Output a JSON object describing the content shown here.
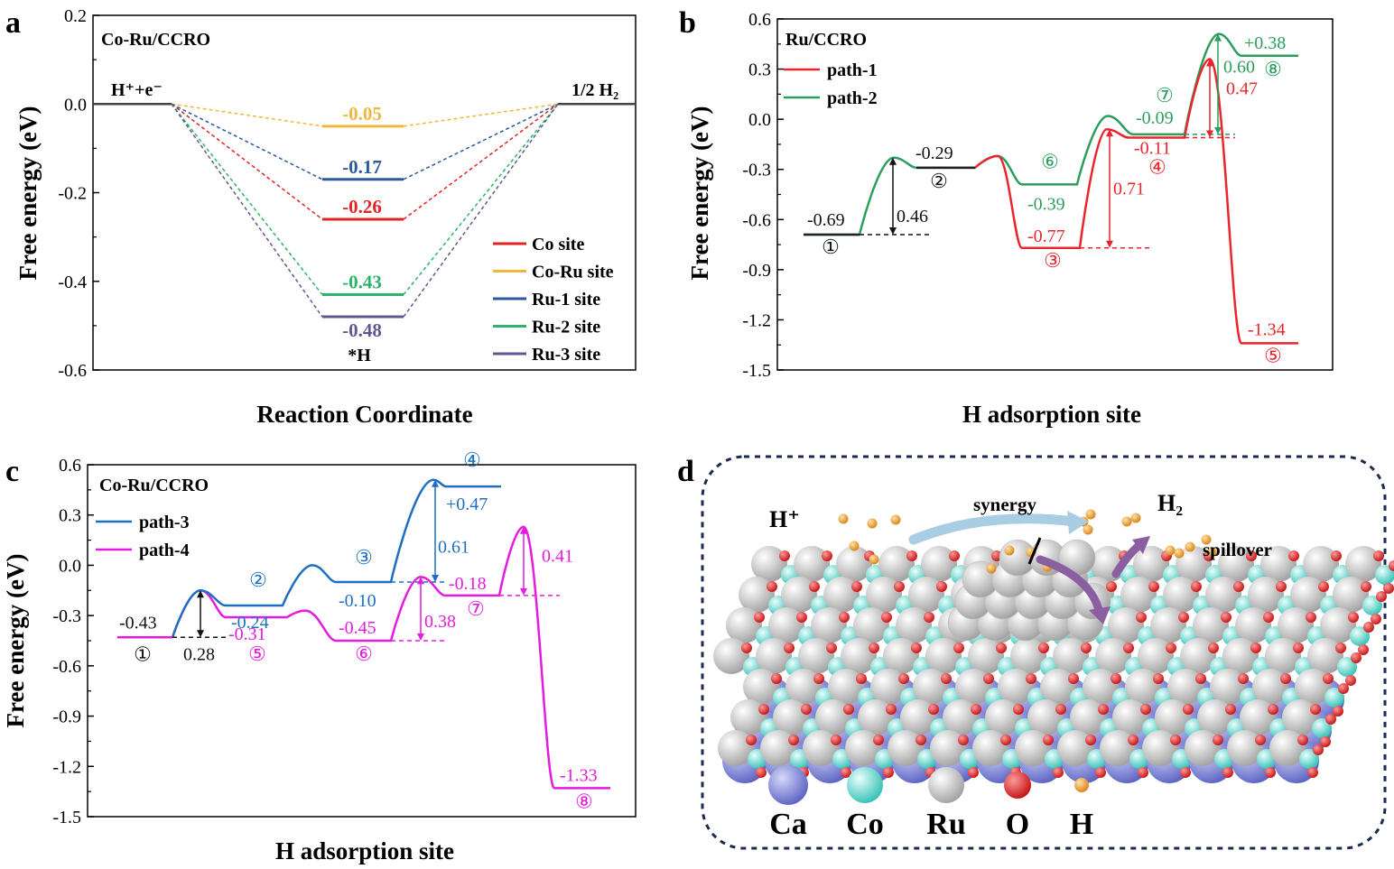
{
  "colors": {
    "co": "#e02424",
    "coru": "#f0b73c",
    "ru1": "#2d5a9c",
    "ru2": "#2eb36a",
    "ru3": "#5e5a91",
    "path1": "#e8262b",
    "path2": "#2c9e5c",
    "path3": "#1f6fc1",
    "path4": "#e61be0",
    "black": "#111111",
    "frame_dash": "#1b2b50"
  },
  "chart_data": [
    {
      "panel": "a",
      "type": "line",
      "title": "Co-Ru/CCRO",
      "xlabel": "Reaction Coordinate",
      "ylabel": "Free energy (eV)",
      "ylim": [
        -0.6,
        0.2
      ],
      "yticks": [
        "0.2",
        "0.0",
        "-0.2",
        "-0.4",
        "-0.6"
      ],
      "state_labels": {
        "initial": "H⁺+e⁻",
        "adsorbed": "*H",
        "final": "1/2 H₂"
      },
      "series": [
        {
          "name": "Co site",
          "color_key": "co",
          "value": -0.26,
          "value_label": "-0.26"
        },
        {
          "name": "Co-Ru site",
          "color_key": "coru",
          "value": -0.05,
          "value_label": "-0.05"
        },
        {
          "name": "Ru-1 site",
          "color_key": "ru1",
          "value": -0.17,
          "value_label": "-0.17"
        },
        {
          "name": "Ru-2 site",
          "color_key": "ru2",
          "value": -0.43,
          "value_label": "-0.43"
        },
        {
          "name": "Ru-3 site",
          "color_key": "ru3",
          "value": -0.48,
          "value_label": "-0.48"
        }
      ],
      "legend_position": "bottom-right"
    },
    {
      "panel": "b",
      "type": "line",
      "title": "Ru/CCRO",
      "xlabel": "H adsorption site",
      "ylabel": "Free energy (eV)",
      "ylim": [
        -1.5,
        0.6
      ],
      "yticks": [
        "0.6",
        "0.3",
        "0.0",
        "-0.3",
        "-0.6",
        "-0.9",
        "-1.2",
        "-1.5"
      ],
      "series": [
        {
          "name": "path-1",
          "color_key": "path1"
        },
        {
          "name": "path-2",
          "color_key": "path2"
        }
      ],
      "levels": [
        {
          "site": "①",
          "value": -0.69,
          "label": "-0.69",
          "color_key": "black"
        },
        {
          "site": "②",
          "value": -0.29,
          "label": "-0.29",
          "color_key": "black"
        },
        {
          "site": "③",
          "value": -0.77,
          "label": "-0.77",
          "color_key": "path1"
        },
        {
          "site": "④",
          "value": -0.11,
          "label": "-0.11",
          "color_key": "path1"
        },
        {
          "site": "⑤",
          "value": -1.34,
          "label": "-1.34",
          "color_key": "path1"
        },
        {
          "site": "⑥",
          "value": -0.39,
          "label": "-0.39",
          "color_key": "path2"
        },
        {
          "site": "⑦",
          "value": -0.09,
          "label": "-0.09",
          "color_key": "path2"
        },
        {
          "site": "⑧",
          "value": 0.38,
          "label": "+0.38",
          "color_key": "path2"
        }
      ],
      "barriers": [
        {
          "value": 0.46,
          "label": "0.46",
          "color_key": "black"
        },
        {
          "value": 0.71,
          "label": "0.71",
          "color_key": "path1"
        },
        {
          "value": 0.47,
          "label": "0.47",
          "color_key": "path1"
        },
        {
          "value": 0.6,
          "label": "0.60",
          "color_key": "path2"
        }
      ],
      "legend_position": "top-left"
    },
    {
      "panel": "c",
      "type": "line",
      "title": "Co-Ru/CCRO",
      "xlabel": "H adsorption site",
      "ylabel": "Free energy (eV)",
      "ylim": [
        -1.5,
        0.6
      ],
      "yticks": [
        "0.6",
        "0.3",
        "0.0",
        "-0.3",
        "-0.6",
        "-0.9",
        "-1.2",
        "-1.5"
      ],
      "series": [
        {
          "name": "path-3",
          "color_key": "path3"
        },
        {
          "name": "path-4",
          "color_key": "path4"
        }
      ],
      "levels": [
        {
          "site": "①",
          "value": -0.43,
          "label": "-0.43",
          "color_key": "black"
        },
        {
          "site": "②",
          "value": -0.24,
          "label": "-0.24",
          "color_key": "path3"
        },
        {
          "site": "③",
          "value": -0.1,
          "label": "-0.10",
          "color_key": "path3"
        },
        {
          "site": "④",
          "value": 0.47,
          "label": "+0.47",
          "color_key": "path3"
        },
        {
          "site": "⑤",
          "value": -0.31,
          "label": "-0.31",
          "color_key": "path4"
        },
        {
          "site": "⑥",
          "value": -0.45,
          "label": "-0.45",
          "color_key": "path4"
        },
        {
          "site": "⑦",
          "value": -0.18,
          "label": "-0.18",
          "color_key": "path4"
        },
        {
          "site": "⑧",
          "value": -1.33,
          "label": "-1.33",
          "color_key": "path4"
        }
      ],
      "barriers": [
        {
          "value": 0.28,
          "label": "0.28",
          "color_key": "black"
        },
        {
          "value": 0.61,
          "label": "0.61",
          "color_key": "path3"
        },
        {
          "value": 0.38,
          "label": "0.38",
          "color_key": "path4"
        },
        {
          "value": 0.41,
          "label": "0.41",
          "color_key": "path4"
        }
      ],
      "legend_position": "top-left"
    }
  ],
  "panels": {
    "a": "a",
    "b": "b",
    "c": "c",
    "d": "d"
  },
  "schematic": {
    "labels": {
      "proton": "H⁺",
      "synergy": "synergy",
      "h2": "H₂",
      "spillover": "spillover"
    },
    "legend": [
      {
        "name": "Ca",
        "color": "#7f86d8"
      },
      {
        "name": "Co",
        "color": "#6fe0d6"
      },
      {
        "name": "Ru",
        "color": "#d8d8d8"
      },
      {
        "name": "O",
        "color": "#e53030"
      },
      {
        "name": "H",
        "color": "#f0a43a"
      }
    ]
  }
}
